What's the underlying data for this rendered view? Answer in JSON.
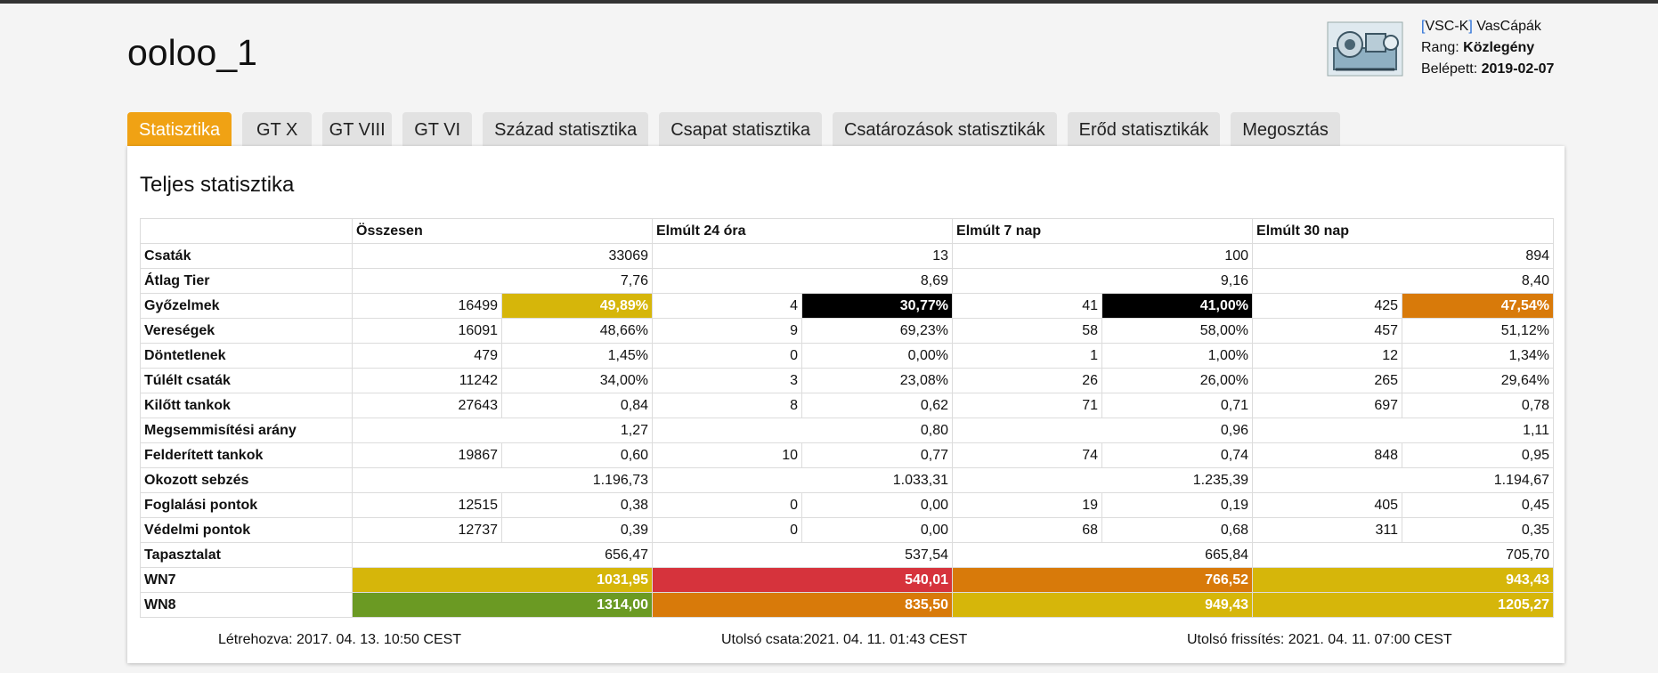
{
  "player": {
    "name": "ooloo_1"
  },
  "clan": {
    "tag_open": "[",
    "tag": "VSC-K",
    "tag_close": "]",
    "name": "VasCápák",
    "rank_label": "Rang:",
    "rank": "Közlegény",
    "joined_label": "Belépett:",
    "joined": "2019-02-07",
    "logo_icon": "clan-logo-mechanical-shark"
  },
  "tabs": [
    "Statisztika",
    "GT X",
    "GT VIII",
    "GT VI",
    "Század statisztika",
    "Csapat statisztika",
    "Csatározások statisztikák",
    "Erőd statisztikák",
    "Megosztás"
  ],
  "panel": {
    "title": "Teljes statisztika"
  },
  "table": {
    "headers": [
      "Összesen",
      "Elmúlt 24 óra",
      "Elmúlt 7 nap",
      "Elmúlt 30 nap"
    ],
    "rows": [
      {
        "label": "Csaták",
        "merged": true,
        "cells": [
          [
            "33069"
          ],
          [
            "13"
          ],
          [
            "100"
          ],
          [
            "894"
          ]
        ]
      },
      {
        "label": "Átlag Tier",
        "merged": true,
        "cells": [
          [
            "7,76"
          ],
          [
            "8,69"
          ],
          [
            "9,16"
          ],
          [
            "8,40"
          ]
        ]
      },
      {
        "label": "Győzelmek",
        "merged": false,
        "cells": [
          [
            "16499",
            "49,89%"
          ],
          [
            "4",
            "30,77%"
          ],
          [
            "41",
            "41,00%"
          ],
          [
            "425",
            "47,54%"
          ]
        ]
      },
      {
        "label": "Vereségek",
        "merged": false,
        "cells": [
          [
            "16091",
            "48,66%"
          ],
          [
            "9",
            "69,23%"
          ],
          [
            "58",
            "58,00%"
          ],
          [
            "457",
            "51,12%"
          ]
        ]
      },
      {
        "label": "Döntetlenek",
        "merged": false,
        "cells": [
          [
            "479",
            "1,45%"
          ],
          [
            "0",
            "0,00%"
          ],
          [
            "1",
            "1,00%"
          ],
          [
            "12",
            "1,34%"
          ]
        ]
      },
      {
        "label": "Túlélt csaták",
        "merged": false,
        "cells": [
          [
            "11242",
            "34,00%"
          ],
          [
            "3",
            "23,08%"
          ],
          [
            "26",
            "26,00%"
          ],
          [
            "265",
            "29,64%"
          ]
        ]
      },
      {
        "label": "Kilőtt tankok",
        "merged": false,
        "cells": [
          [
            "27643",
            "0,84"
          ],
          [
            "8",
            "0,62"
          ],
          [
            "71",
            "0,71"
          ],
          [
            "697",
            "0,78"
          ]
        ]
      },
      {
        "label": "Megsemmisítési arány",
        "merged": true,
        "cells": [
          [
            "1,27"
          ],
          [
            "0,80"
          ],
          [
            "0,96"
          ],
          [
            "1,11"
          ]
        ]
      },
      {
        "label": "Felderített tankok",
        "merged": false,
        "cells": [
          [
            "19867",
            "0,60"
          ],
          [
            "10",
            "0,77"
          ],
          [
            "74",
            "0,74"
          ],
          [
            "848",
            "0,95"
          ]
        ]
      },
      {
        "label": "Okozott sebzés",
        "merged": true,
        "cells": [
          [
            "1.196,73"
          ],
          [
            "1.033,31"
          ],
          [
            "1.235,39"
          ],
          [
            "1.194,67"
          ]
        ]
      },
      {
        "label": "Foglalási pontok",
        "merged": false,
        "cells": [
          [
            "12515",
            "0,38"
          ],
          [
            "0",
            "0,00"
          ],
          [
            "19",
            "0,19"
          ],
          [
            "405",
            "0,45"
          ]
        ]
      },
      {
        "label": "Védelmi pontok",
        "merged": false,
        "cells": [
          [
            "12737",
            "0,39"
          ],
          [
            "0",
            "0,00"
          ],
          [
            "68",
            "0,68"
          ],
          [
            "311",
            "0,35"
          ]
        ]
      },
      {
        "label": "Tapasztalat",
        "merged": true,
        "cells": [
          [
            "656,47"
          ],
          [
            "537,54"
          ],
          [
            "665,84"
          ],
          [
            "705,70"
          ]
        ]
      },
      {
        "label": "WN7",
        "merged": true,
        "cells": [
          [
            "1031,95"
          ],
          [
            "540,01"
          ],
          [
            "766,52"
          ],
          [
            "943,43"
          ]
        ]
      },
      {
        "label": "WN8",
        "merged": true,
        "cells": [
          [
            "1314,00"
          ],
          [
            "835,50"
          ],
          [
            "949,43"
          ],
          [
            "1205,27"
          ]
        ]
      }
    ],
    "colors": {
      "win_rate": [
        "#d6b60a",
        "#000000",
        "#000000",
        "#d87a0a"
      ],
      "wn7": [
        "#d6b60a",
        "#d6333c",
        "#d87a0a",
        "#d6b60a"
      ],
      "wn8": [
        "#6b9a23",
        "#d87a0a",
        "#d6b60a",
        "#d6b60a"
      ]
    }
  },
  "footer": {
    "created": "Létrehozva: 2017. 04. 13. 10:50 CEST",
    "last_battle": "Utolsó csata:2021. 04. 11. 01:43 CEST",
    "last_refresh": "Utolsó frissítés: 2021. 04. 11. 07:00 CEST"
  }
}
